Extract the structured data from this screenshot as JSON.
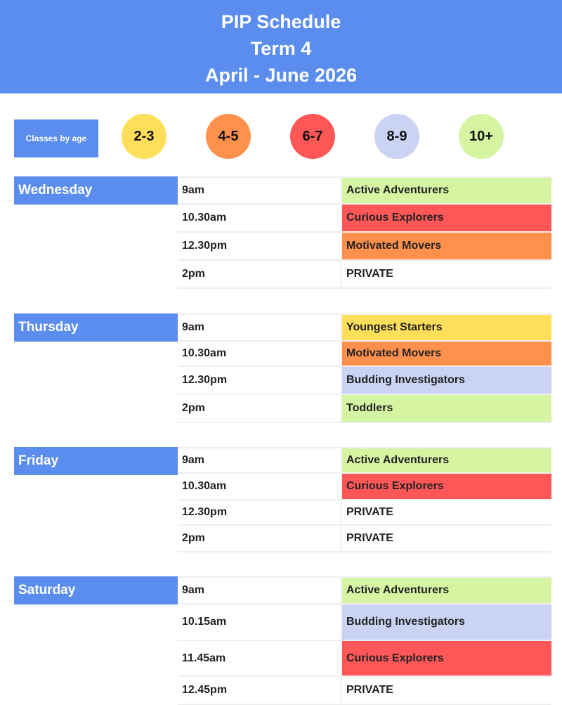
{
  "header": {
    "title": "PIP Schedule",
    "term": "Term 4",
    "dates": "April - June 2026"
  },
  "legend": {
    "label": "Classes by age",
    "ages": [
      {
        "label": "2-3",
        "color": "#ffde59"
      },
      {
        "label": "4-5",
        "color": "#ff914d"
      },
      {
        "label": "6-7",
        "color": "#ff5757"
      },
      {
        "label": "8-9",
        "color": "#cbd3f4"
      },
      {
        "label": "10+",
        "color": "#d5f5a3"
      }
    ]
  },
  "colors": {
    "accent": "#5b8def",
    "private": "#ffffff"
  },
  "days": [
    {
      "name": "Wednesday",
      "rows": [
        {
          "time": "9am",
          "class": "Active Adventurers",
          "color": "#d5f5a3"
        },
        {
          "time": "10.30am",
          "class": "Curious Explorers",
          "color": "#ff5757"
        },
        {
          "time": "12.30pm",
          "class": "Motivated Movers",
          "color": "#ff914d"
        },
        {
          "time": "2pm",
          "class": "PRIVATE",
          "color": "#ffffff"
        }
      ]
    },
    {
      "name": "Thursday",
      "rows": [
        {
          "time": "9am",
          "class": "Youngest Starters",
          "color": "#ffde59"
        },
        {
          "time": "10.30am",
          "class": "Motivated Movers",
          "color": "#ff914d"
        },
        {
          "time": "12.30pm",
          "class": "Budding Investigators",
          "color": "#cbd3f4"
        },
        {
          "time": "2pm",
          "class": "Toddlers",
          "color": "#d5f5a3"
        }
      ]
    },
    {
      "name": "Friday",
      "rows": [
        {
          "time": "9am",
          "class": "Active Adventurers",
          "color": "#d5f5a3"
        },
        {
          "time": "10.30am",
          "class": "Curious Explorers",
          "color": "#ff5757"
        },
        {
          "time": "12.30pm",
          "class": "PRIVATE",
          "color": "#ffffff"
        },
        {
          "time": "2pm",
          "class": "PRIVATE",
          "color": "#ffffff"
        }
      ]
    },
    {
      "name": "Saturday",
      "rows": [
        {
          "time": "9am",
          "class": "Active Adventurers",
          "color": "#d5f5a3"
        },
        {
          "time": "10.15am",
          "class": "Budding Investigators",
          "color": "#cbd3f4"
        },
        {
          "time": "11.45am",
          "class": "Curious Explorers",
          "color": "#ff5757"
        },
        {
          "time": "12.45pm",
          "class": "PRIVATE",
          "color": "#ffffff"
        }
      ]
    }
  ]
}
